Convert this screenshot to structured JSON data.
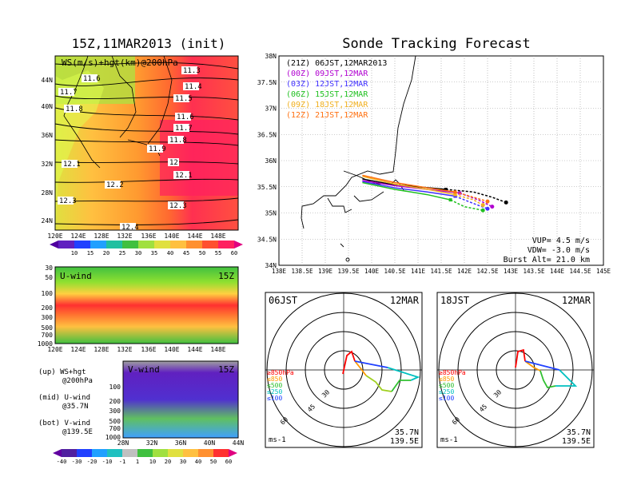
{
  "left_title": "15Z,11MAR2013 (init)",
  "right_title": "Sonde Tracking Forecast",
  "map_panel": {
    "label": "WS(m/s)+hgt(km)@200hPa",
    "lat_ticks": [
      "44N",
      "40N",
      "36N",
      "32N",
      "28N",
      "24N"
    ],
    "lon_ticks": [
      "120E",
      "124E",
      "128E",
      "132E",
      "136E",
      "140E",
      "144E",
      "148E"
    ],
    "contour_labels": [
      "11.3",
      "11.6",
      "11.4",
      "11.7",
      "11.5",
      "11.8",
      "11.6",
      "11.7",
      "11.8",
      "11.9",
      "12",
      "12.1",
      "12.1",
      "12.2",
      "12.3",
      "12.3",
      "12.4"
    ]
  },
  "colorbar_top": {
    "ticks": [
      "10",
      "15",
      "20",
      "25",
      "30",
      "35",
      "40",
      "45",
      "50",
      "55",
      "60"
    ]
  },
  "u_panel": {
    "label": "U-wind",
    "time": "15Z",
    "y_ticks": [
      "30",
      "50",
      "100",
      "200",
      "300",
      "500",
      "700",
      "1000"
    ],
    "x_ticks": [
      "120E",
      "124E",
      "128E",
      "132E",
      "136E",
      "140E",
      "144E",
      "148E"
    ]
  },
  "v_panel": {
    "label": "V-wind",
    "time": "15Z",
    "y_ticks": [
      "100",
      "200",
      "300",
      "500",
      "700",
      "1000"
    ],
    "x_ticks": [
      "28N",
      "32N",
      "36N",
      "40N",
      "44N"
    ]
  },
  "colorbar_bottom": {
    "ticks": [
      "-40",
      "-30",
      "-20",
      "-10",
      "-1",
      "1",
      "10",
      "20",
      "30",
      "40",
      "50",
      "60"
    ]
  },
  "notes": [
    {
      "a": "(up) WS+hgt",
      "b": "@200hPa"
    },
    {
      "a": "(mid) U-wind",
      "b": "@35.7N"
    },
    {
      "a": "(bot) V-wind",
      "b": "@139.5E"
    }
  ],
  "track_panel": {
    "lat_ticks": [
      "38N",
      "37.5N",
      "37N",
      "36.5N",
      "36N",
      "35.5N",
      "35N",
      "34.5N",
      "34N"
    ],
    "lon_ticks": [
      "138E",
      "138.5E",
      "139E",
      "139.5E",
      "140E",
      "140.5E",
      "141E",
      "141.5E",
      "142E",
      "142.5E",
      "143E",
      "143.5E",
      "144E",
      "144.5E",
      "145E"
    ],
    "legend": [
      {
        "label": "(21Z) 06JST,12MAR2013",
        "color": "#000000"
      },
      {
        "label": "(00Z) 09JST,12MAR",
        "color": "#b000d0"
      },
      {
        "label": "(03Z) 12JST,12MAR",
        "color": "#4030ff"
      },
      {
        "label": "(06Z) 15JST,12MAR",
        "color": "#20c020"
      },
      {
        "label": "(09Z) 18JST,12MAR",
        "color": "#f0b020"
      },
      {
        "label": "(12Z) 21JST,12MAR",
        "color": "#ff7010"
      }
    ],
    "info": [
      "VUP= 4.5 m/s",
      "VDW= -3.0 m/s",
      "Burst Alt= 21.0 km"
    ]
  },
  "hodo_left": {
    "time": "06JST",
    "date": "12MAR",
    "loc1": "35.7N",
    "loc2": "139.5E",
    "unit": "ms-1",
    "rings": [
      "30",
      "45",
      "60"
    ],
    "levels": [
      {
        "t": "≥850hPa",
        "c": "#ff0000"
      },
      {
        "t": "≤850",
        "c": "#ff9900"
      },
      {
        "t": "≤500",
        "c": "#30c030"
      },
      {
        "t": "≤250",
        "c": "#00c0c0"
      },
      {
        "t": "≤100",
        "c": "#2040ff"
      }
    ]
  },
  "hodo_right": {
    "time": "18JST",
    "date": "12MAR",
    "loc1": "35.7N",
    "loc2": "139.5E",
    "unit": "ms-1",
    "rings": [
      "30",
      "45",
      "60"
    ],
    "levels": [
      {
        "t": "≥850hPa",
        "c": "#ff0000"
      },
      {
        "t": "≤850",
        "c": "#ff9900"
      },
      {
        "t": "≤500",
        "c": "#30c030"
      },
      {
        "t": "≤250",
        "c": "#00c0c0"
      },
      {
        "t": "≤100",
        "c": "#2040ff"
      }
    ]
  },
  "chart_data": {
    "type": "line",
    "title": "Sonde Tracking Forecast",
    "series": [
      {
        "name": "(21Z) 06JST,12MAR2013",
        "color": "#000000",
        "x": [
          139.8,
          140.4,
          141.0,
          141.6,
          142.2,
          142.6,
          142.9
        ],
        "y": [
          35.65,
          35.55,
          35.5,
          35.45,
          35.4,
          35.3,
          35.2
        ]
      },
      {
        "name": "(00Z) 09JST,12MAR",
        "color": "#b000d0",
        "x": [
          139.8,
          140.5,
          141.2,
          141.9,
          142.3,
          142.6
        ],
        "y": [
          35.62,
          35.52,
          35.45,
          35.38,
          35.25,
          35.12
        ]
      },
      {
        "name": "(03Z) 12JST,12MAR",
        "color": "#4030ff",
        "x": [
          139.8,
          140.5,
          141.2,
          141.8,
          142.2,
          142.5
        ],
        "y": [
          35.6,
          35.48,
          35.4,
          35.32,
          35.18,
          35.08
        ]
      },
      {
        "name": "(06Z) 15JST,12MAR",
        "color": "#20c020",
        "x": [
          139.8,
          140.5,
          141.2,
          141.7,
          142.0,
          142.4
        ],
        "y": [
          35.58,
          35.45,
          35.35,
          35.25,
          35.12,
          35.05
        ]
      },
      {
        "name": "(09Z) 18JST,12MAR",
        "color": "#f0b020",
        "x": [
          139.8,
          140.5,
          141.2,
          141.8,
          142.2,
          142.4
        ],
        "y": [
          35.7,
          35.55,
          35.45,
          35.35,
          35.25,
          35.15
        ]
      },
      {
        "name": "(12Z) 21JST,12MAR",
        "color": "#ff7010",
        "x": [
          139.8,
          140.5,
          141.2,
          141.8,
          142.2,
          142.5
        ],
        "y": [
          35.72,
          35.58,
          35.48,
          35.4,
          35.3,
          35.22
        ]
      }
    ],
    "xlim": [
      138,
      145
    ],
    "ylim": [
      34,
      38
    ]
  }
}
